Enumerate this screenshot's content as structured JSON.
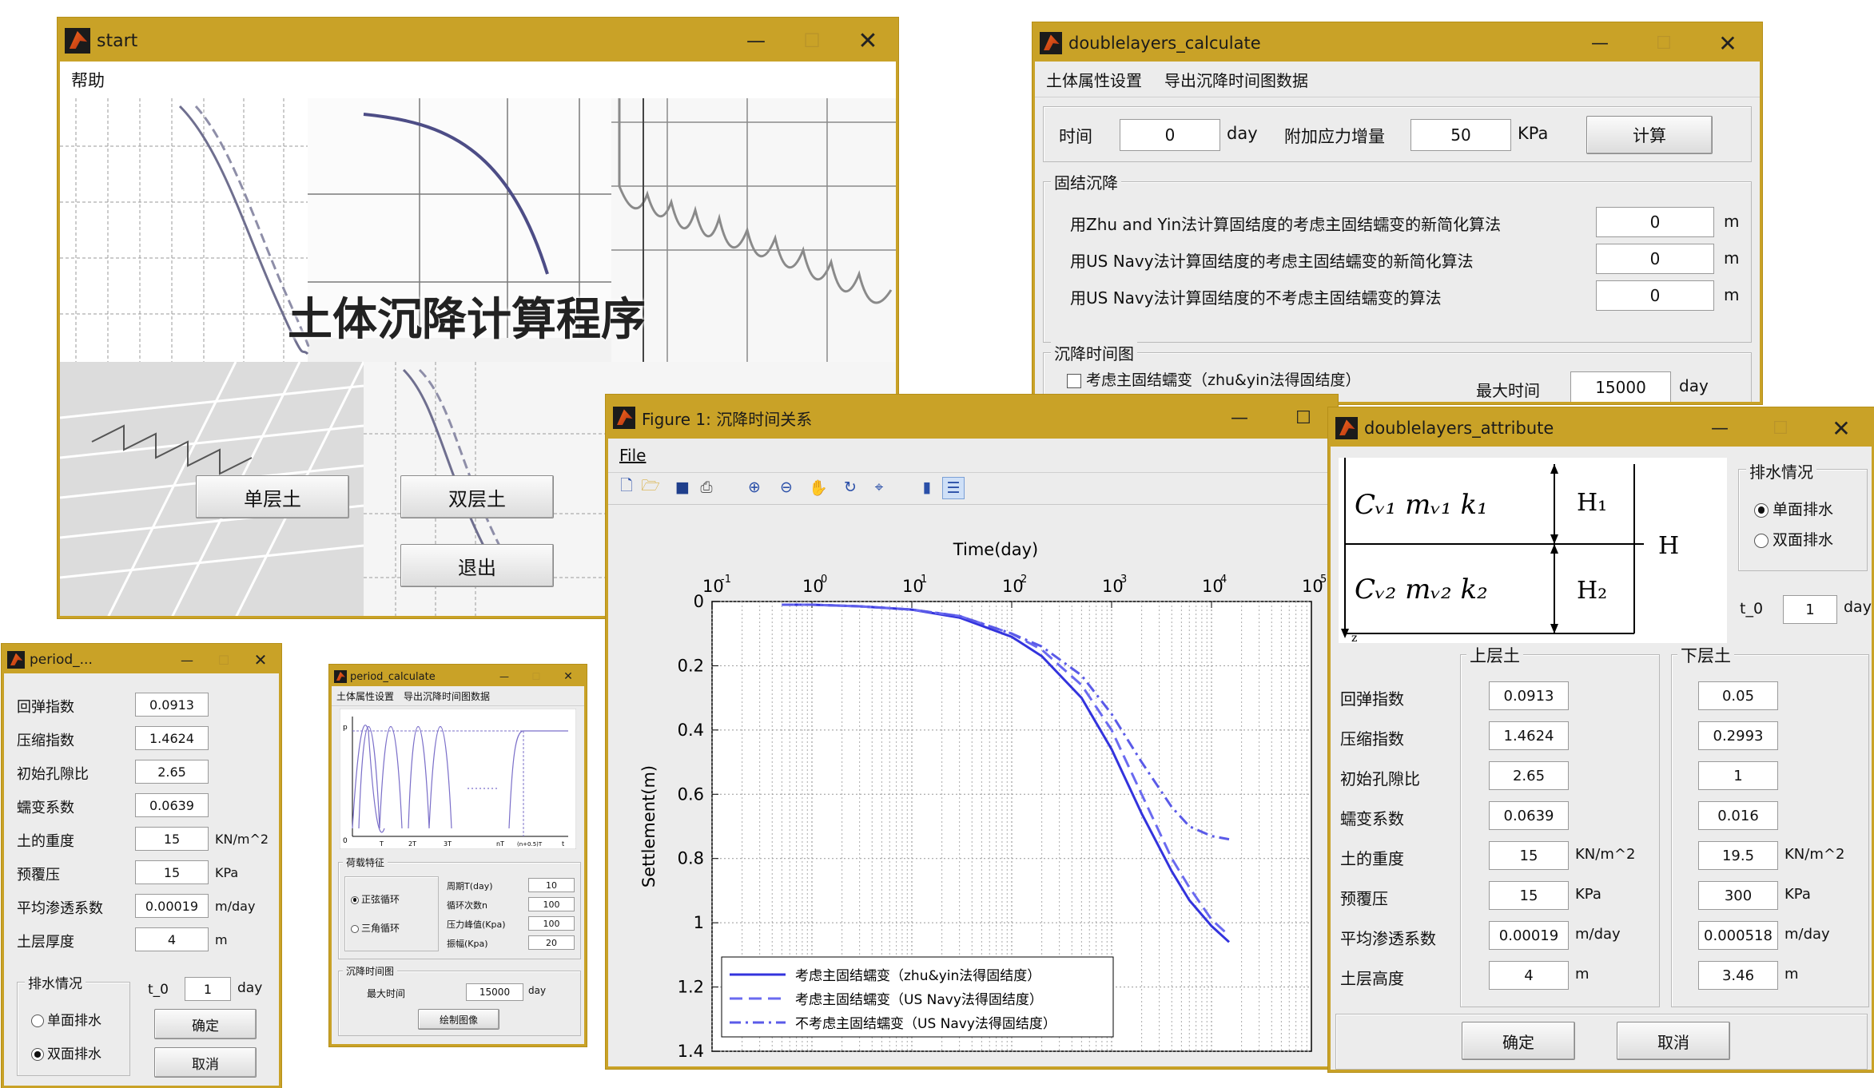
{
  "start_window": {
    "title": "start",
    "menu": [
      "帮助"
    ],
    "banner_title": "土体沉降计算程序",
    "buttons": {
      "single": "单层土",
      "double": "双层土",
      "exit": "退出"
    }
  },
  "dl_calc": {
    "title": "doublelayers_calculate",
    "menu": [
      "土体属性设置",
      "导出沉降时间图数据"
    ],
    "time_label": "时间",
    "time_value": "0",
    "time_unit": "day",
    "stress_label": "附加应力增量",
    "stress_value": "50",
    "stress_unit": "KPa",
    "calc_button": "计算",
    "consolidation_group": "固结沉降",
    "rows": [
      {
        "label": "用Zhu and Yin法计算固结度的考虑主固结蠕变的新简化算法",
        "value": "0",
        "unit": "m"
      },
      {
        "label": "用US Navy法计算固结度的考虑主固结蠕变的新简化算法",
        "value": "0",
        "unit": "m"
      },
      {
        "label": "用US Navy法计算固结度的不考虑主固结蠕变的算法",
        "value": "0",
        "unit": "m"
      }
    ],
    "plot_group": "沉降时间图",
    "checkbox_label": "考虑主固结蠕变（zhu&yin法得固结度）",
    "max_time_label": "最大时间",
    "max_time_value": "15000",
    "max_time_unit": "day"
  },
  "figure": {
    "title": "Figure 1: 沉降时间关系",
    "menu": [
      "File"
    ],
    "toolbar": [
      "new-icon",
      "open-icon",
      "save-icon",
      "print-icon",
      "zoom-in-icon",
      "zoom-out-icon",
      "pan-icon",
      "rotate-icon",
      "datacursor-icon",
      "colorbar-icon",
      "legend-icon"
    ],
    "chart_data": {
      "type": "line",
      "xlabel": "Time(day)",
      "ylabel": "Settlement(m)",
      "x_scale": "log",
      "xlim": [
        0.1,
        100000
      ],
      "ylim": [
        0,
        1.4
      ],
      "y_reversed": true,
      "x_axis_position": "top",
      "grid": true,
      "x_ticks": [
        {
          "base": "10",
          "exp": "-1",
          "v": 0.1
        },
        {
          "base": "10",
          "exp": "0",
          "v": 1
        },
        {
          "base": "10",
          "exp": "1",
          "v": 10
        },
        {
          "base": "10",
          "exp": "2",
          "v": 100
        },
        {
          "base": "10",
          "exp": "3",
          "v": 1000
        },
        {
          "base": "10",
          "exp": "4",
          "v": 10000
        },
        {
          "base": "10",
          "exp": "5",
          "v": 100000
        }
      ],
      "y_ticks": [
        "0",
        "0.2",
        "0.4",
        "0.6",
        "0.8",
        "1",
        "1.2",
        "1.4"
      ],
      "legend_position": "bottom-left",
      "series": [
        {
          "name": "考虑主固结蠕变（zhu&yin法得固结度）",
          "style": "solid",
          "x": [
            0.5,
            1,
            3,
            10,
            30,
            100,
            200,
            500,
            1000,
            2000,
            4000,
            6000,
            10000,
            15000
          ],
          "y": [
            0.01,
            0.01,
            0.015,
            0.025,
            0.05,
            0.11,
            0.17,
            0.3,
            0.46,
            0.66,
            0.84,
            0.93,
            1.01,
            1.06
          ]
        },
        {
          "name": "考虑主固结蠕变（US Navy法得固结度）",
          "style": "dash",
          "x": [
            0.5,
            1,
            3,
            10,
            30,
            100,
            200,
            500,
            1000,
            2000,
            4000,
            6000,
            10000,
            15000
          ],
          "y": [
            0.01,
            0.01,
            0.015,
            0.025,
            0.045,
            0.1,
            0.15,
            0.26,
            0.4,
            0.6,
            0.8,
            0.89,
            0.99,
            1.04
          ]
        },
        {
          "name": "不考虑主固结蠕变（US Navy法得固结度）",
          "style": "dashdot",
          "x": [
            0.5,
            1,
            3,
            10,
            30,
            100,
            200,
            500,
            1000,
            2000,
            4000,
            6000,
            10000,
            15000
          ],
          "y": [
            0.01,
            0.01,
            0.015,
            0.025,
            0.045,
            0.1,
            0.14,
            0.23,
            0.35,
            0.5,
            0.64,
            0.7,
            0.73,
            0.74
          ]
        }
      ]
    }
  },
  "dl_attr": {
    "title": "doublelayers_attribute",
    "diagram": {
      "layer1": "Cᵥ₁  mᵥ₁  k₁",
      "layer2": "Cᵥ₂  mᵥ₂  k₂",
      "h1": "H₁",
      "h2": "H₂",
      "h": "H",
      "z": "z"
    },
    "drainage_group": "排水情况",
    "drainage_options": [
      "单面排水",
      "双面排水"
    ],
    "t0_label": "t_0",
    "t0_value": "1",
    "t0_unit": "day",
    "upper_group": "上层土",
    "lower_group": "下层土",
    "labels": [
      "回弹指数",
      "压缩指数",
      "初始孔隙比",
      "蠕变系数",
      "土的重度",
      "预覆压",
      "平均渗透系数",
      "土层高度"
    ],
    "upper_values": [
      "0.0913",
      "1.4624",
      "2.65",
      "0.0639",
      "15",
      "15",
      "0.00019",
      "4"
    ],
    "lower_values": [
      "0.05",
      "0.2993",
      "1",
      "0.016",
      "19.5",
      "300",
      "0.000518",
      "3.46"
    ],
    "units": [
      "",
      "",
      "",
      "",
      "KN/m^2",
      "KPa",
      "m/day",
      "m"
    ],
    "ok": "确定",
    "cancel": "取消"
  },
  "period_small": {
    "title": "period_...",
    "labels": [
      "回弹指数",
      "压缩指数",
      "初始孔隙比",
      "蠕变系数",
      "土的重度",
      "预覆压",
      "平均渗透系数",
      "土层厚度"
    ],
    "values": [
      "0.0913",
      "1.4624",
      "2.65",
      "0.0639",
      "15",
      "15",
      "0.00019",
      "4"
    ],
    "units": [
      "",
      "",
      "",
      "",
      "KN/m^2",
      "KPa",
      "m/day",
      "m"
    ],
    "drainage_group": "排水情况",
    "drainage_options": [
      "单面排水",
      "双面排水"
    ],
    "t0_label": "t_0",
    "t0_value": "1",
    "t0_unit": "day",
    "ok": "确定",
    "cancel": "取消"
  },
  "period_calc": {
    "title": "period_calculate",
    "menu": [
      "土体属性设置",
      "导出沉降时间图数据"
    ],
    "load_group": "荷载特征",
    "load_types": [
      "正弦循环",
      "三角循环"
    ],
    "params": [
      {
        "label": "周期T(day)",
        "value": "10"
      },
      {
        "label": "循环次数n",
        "value": "100"
      },
      {
        "label": "压力峰值(Kpa)",
        "value": "100"
      },
      {
        "label": "振幅(Kpa)",
        "value": "20"
      }
    ],
    "plot_group": "沉降时间图",
    "max_time_label": "最大时间",
    "max_time_value": "15000",
    "max_time_unit": "day",
    "draw_button": "绘制图像",
    "mini_axis": {
      "p": "p",
      "zero": "0",
      "ticks": [
        "T",
        "2T",
        "3T",
        "nT",
        "(n+0.5)T",
        "t"
      ]
    }
  }
}
